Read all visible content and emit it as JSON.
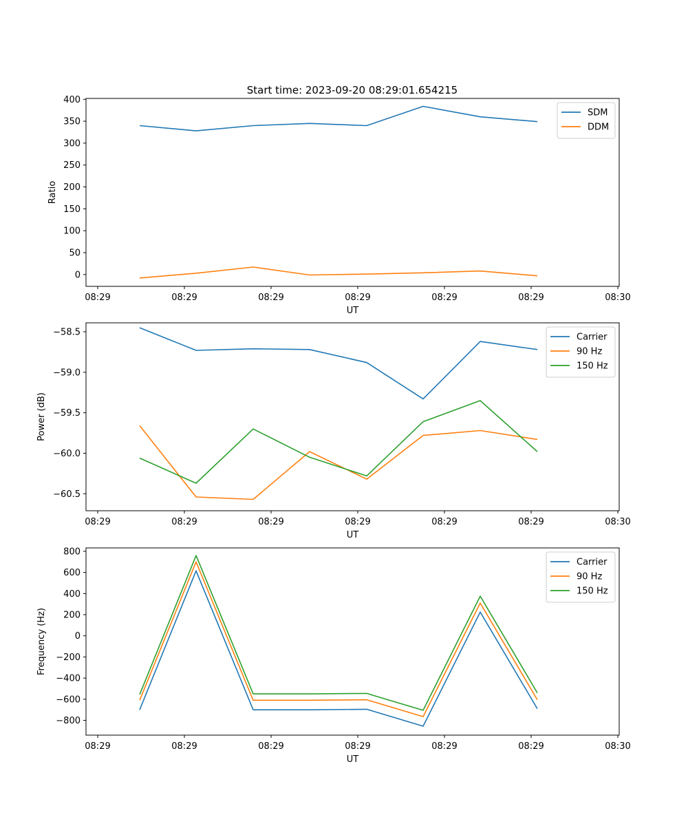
{
  "title": "Start time: 2023-09-20 08:29:01.654215",
  "chart_data": [
    {
      "type": "line",
      "xlabel": "UT",
      "ylabel": "Ratio",
      "xticklabels": [
        "08:29",
        "08:29",
        "08:29",
        "08:29",
        "08:29",
        "08:29",
        "08:30"
      ],
      "yticks": [
        0,
        50,
        100,
        150,
        200,
        250,
        300,
        350,
        400
      ],
      "yticklabels": [
        "0",
        "50",
        "100",
        "150",
        "200",
        "250",
        "300",
        "350",
        "400"
      ],
      "ylim": [
        -27,
        402
      ],
      "legend_loc": "top-right",
      "series": [
        {
          "name": "SDM",
          "color": "#1f77b4",
          "values": [
            340,
            328,
            340,
            345,
            340,
            384,
            360,
            349
          ]
        },
        {
          "name": "DDM",
          "color": "#ff7f0e",
          "values": [
            -8,
            3,
            17,
            -1,
            1,
            4,
            8,
            -3
          ]
        }
      ]
    },
    {
      "type": "line",
      "xlabel": "UT",
      "ylabel": "Power (dB)",
      "xticklabels": [
        "08:29",
        "08:29",
        "08:29",
        "08:29",
        "08:29",
        "08:29",
        "08:30"
      ],
      "yticks": [
        -58.5,
        -59.0,
        -59.5,
        -60.0,
        -60.5
      ],
      "yticklabels": [
        "−58.5",
        "−59.0",
        "−59.5",
        "−60.0",
        "−60.5"
      ],
      "ylim": [
        -60.71,
        -58.39
      ],
      "legend_loc": "top-right",
      "series": [
        {
          "name": "Carrier",
          "color": "#1f77b4",
          "values": [
            -58.45,
            -58.73,
            -58.71,
            -58.72,
            -58.88,
            -59.33,
            -58.62,
            -58.72
          ]
        },
        {
          "name": "90 Hz",
          "color": "#ff7f0e",
          "values": [
            -59.66,
            -60.54,
            -60.57,
            -59.98,
            -60.32,
            -59.78,
            -59.72,
            -59.83
          ]
        },
        {
          "name": "150 Hz",
          "color": "#2ca02c",
          "values": [
            -60.06,
            -60.37,
            -59.7,
            -60.05,
            -60.28,
            -59.61,
            -59.35,
            -59.98
          ]
        }
      ]
    },
    {
      "type": "line",
      "xlabel": "UT",
      "ylabel": "Frequency (Hz)",
      "xticklabels": [
        "08:29",
        "08:29",
        "08:29",
        "08:29",
        "08:29",
        "08:29",
        "08:30"
      ],
      "yticks": [
        800,
        600,
        400,
        200,
        0,
        -200,
        -400,
        -600,
        -800
      ],
      "yticklabels": [
        "800",
        "600",
        "400",
        "200",
        "0",
        "−200",
        "−400",
        "−600",
        "−800"
      ],
      "ylim": [
        -940,
        832
      ],
      "legend_loc": "top-right",
      "series": [
        {
          "name": "Carrier",
          "color": "#1f77b4",
          "values": [
            -700,
            615,
            -700,
            -700,
            -695,
            -855,
            225,
            -690
          ]
        },
        {
          "name": "90 Hz",
          "color": "#ff7f0e",
          "values": [
            -610,
            700,
            -610,
            -610,
            -605,
            -765,
            310,
            -605
          ]
        },
        {
          "name": "150 Hz",
          "color": "#2ca02c",
          "values": [
            -555,
            760,
            -550,
            -550,
            -545,
            -705,
            375,
            -540
          ]
        }
      ]
    }
  ]
}
